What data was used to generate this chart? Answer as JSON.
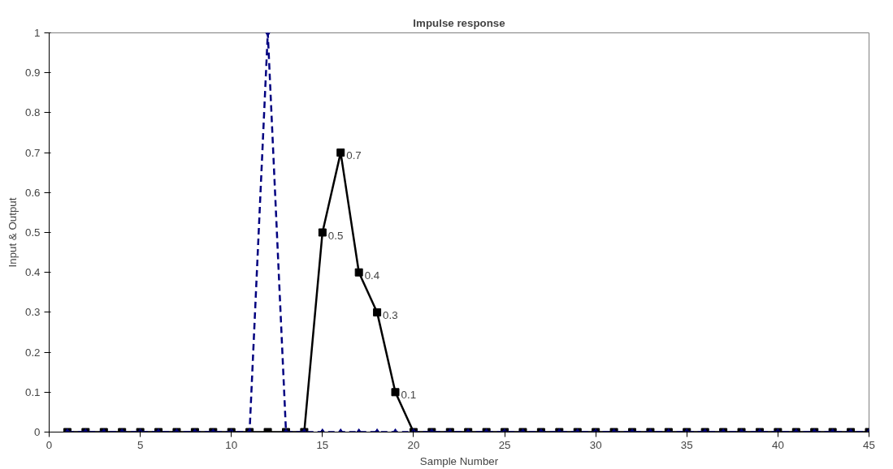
{
  "chart_data": {
    "type": "line",
    "title": "Impulse response",
    "xlabel": "Sample Number",
    "ylabel": "Input & Output",
    "x": [
      1,
      2,
      3,
      4,
      5,
      6,
      7,
      8,
      9,
      10,
      11,
      12,
      13,
      14,
      15,
      16,
      17,
      18,
      19,
      20,
      21,
      22,
      23,
      24,
      25,
      26,
      27,
      28,
      29,
      30,
      31,
      32,
      33,
      34,
      35,
      36,
      37,
      38,
      39,
      40,
      41,
      42,
      43,
      44,
      45
    ],
    "series": [
      {
        "color": "#000000",
        "marker": "square",
        "line_style": "solid",
        "values": [
          0,
          0,
          0,
          0,
          0,
          0,
          0,
          0,
          0,
          0,
          0,
          0,
          0,
          0,
          0.5,
          0.7,
          0.4,
          0.3,
          0.1,
          0,
          0,
          0,
          0,
          0,
          0,
          0,
          0,
          0,
          0,
          0,
          0,
          0,
          0,
          0,
          0,
          0,
          0,
          0,
          0,
          0,
          0,
          0,
          0,
          0,
          0
        ],
        "value_labels": [
          null,
          null,
          null,
          null,
          null,
          null,
          null,
          null,
          null,
          null,
          null,
          null,
          null,
          null,
          "0.5",
          "0.7",
          "0.4",
          "0.3",
          "0.1",
          null,
          null,
          null,
          null,
          null,
          null,
          null,
          null,
          null,
          null,
          null,
          null,
          null,
          null,
          null,
          null,
          null,
          null,
          null,
          null,
          null,
          null,
          null,
          null,
          null,
          null
        ]
      },
      {
        "color": "#000080",
        "marker": "diamond",
        "line_style": "dashed",
        "values": [
          0,
          0,
          0,
          0,
          0,
          0,
          0,
          0,
          0,
          0,
          0,
          1,
          0,
          0,
          0,
          0,
          0,
          0,
          0,
          0,
          0,
          0,
          0,
          0,
          0,
          0,
          0,
          0,
          0,
          0,
          0,
          0,
          0,
          0,
          0,
          0,
          0,
          0,
          0,
          0,
          0,
          0,
          0,
          0,
          0
        ]
      }
    ],
    "xlim": [
      0,
      45
    ],
    "xticks": [
      0,
      5,
      10,
      15,
      20,
      25,
      30,
      35,
      40,
      45
    ],
    "ylim": [
      0,
      1
    ],
    "yticks": [
      0,
      0.1,
      0.2,
      0.3,
      0.4,
      0.5,
      0.6,
      0.7,
      0.8,
      0.9,
      1
    ],
    "grid": false
  }
}
